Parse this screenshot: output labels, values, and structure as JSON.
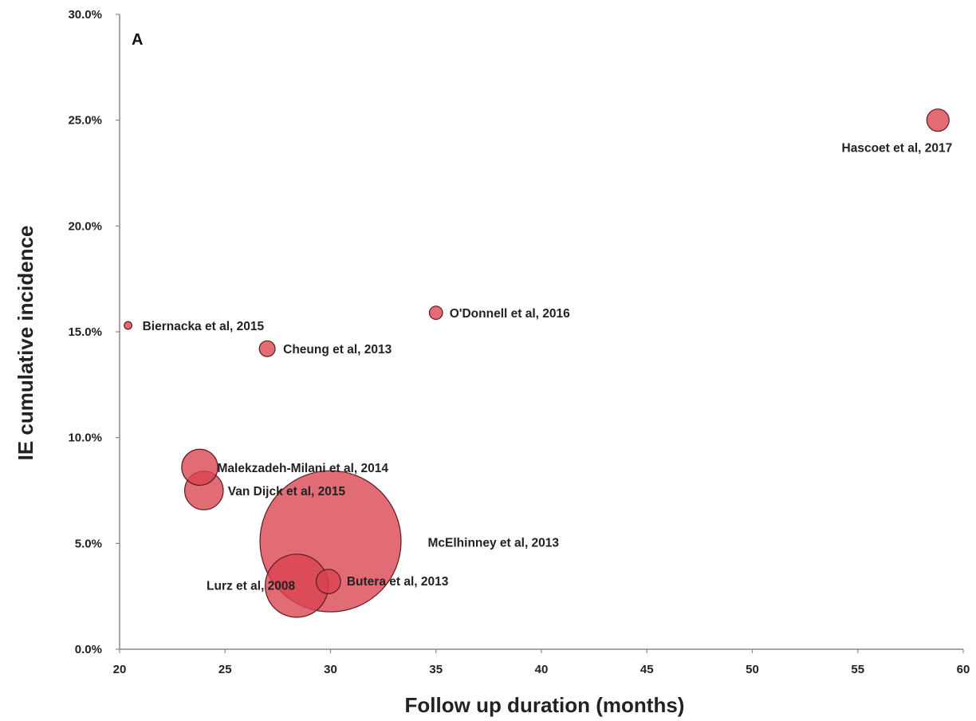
{
  "chart_data": {
    "type": "bubble",
    "panel_label": "A",
    "xlabel": "Follow up duration (months)",
    "ylabel": "IE cumulative incidence",
    "xlim": [
      20,
      60
    ],
    "ylim": [
      0,
      30
    ],
    "x_ticks": [
      20,
      25,
      30,
      35,
      40,
      45,
      50,
      55,
      60
    ],
    "y_ticks": [
      "0.0%",
      "5.0%",
      "10.0%",
      "15.0%",
      "20.0%",
      "25.0%",
      "30.0%"
    ],
    "y_tick_values": [
      0,
      5,
      10,
      15,
      20,
      25,
      30
    ],
    "grid": false,
    "bubble_color": "#d9434f",
    "points": [
      {
        "label": "Hascoet et al, 2017",
        "x": 58.8,
        "y": 25.0,
        "size": 1.0
      },
      {
        "label": "O'Donnell et al, 2016",
        "x": 35.0,
        "y": 15.9,
        "size": 0.35
      },
      {
        "label": "Biernacka et al, 2015",
        "x": 20.4,
        "y": 15.3,
        "size": 0.12
      },
      {
        "label": "Cheung et al, 2013",
        "x": 27.0,
        "y": 14.2,
        "size": 0.5
      },
      {
        "label": "Malekzadeh-Milani et al, 2014",
        "x": 23.8,
        "y": 8.6,
        "size": 2.6
      },
      {
        "label": "Van Dijck et al, 2015",
        "x": 24.0,
        "y": 7.5,
        "size": 3.0
      },
      {
        "label": "McElhinney et al, 2013",
        "x": 30.0,
        "y": 5.1,
        "size": 40.0
      },
      {
        "label": "Lurz et al, 2008",
        "x": 28.4,
        "y": 3.0,
        "size": 8.0
      },
      {
        "label": "Butera et al, 2013",
        "x": 29.9,
        "y": 3.2,
        "size": 1.2
      }
    ]
  }
}
